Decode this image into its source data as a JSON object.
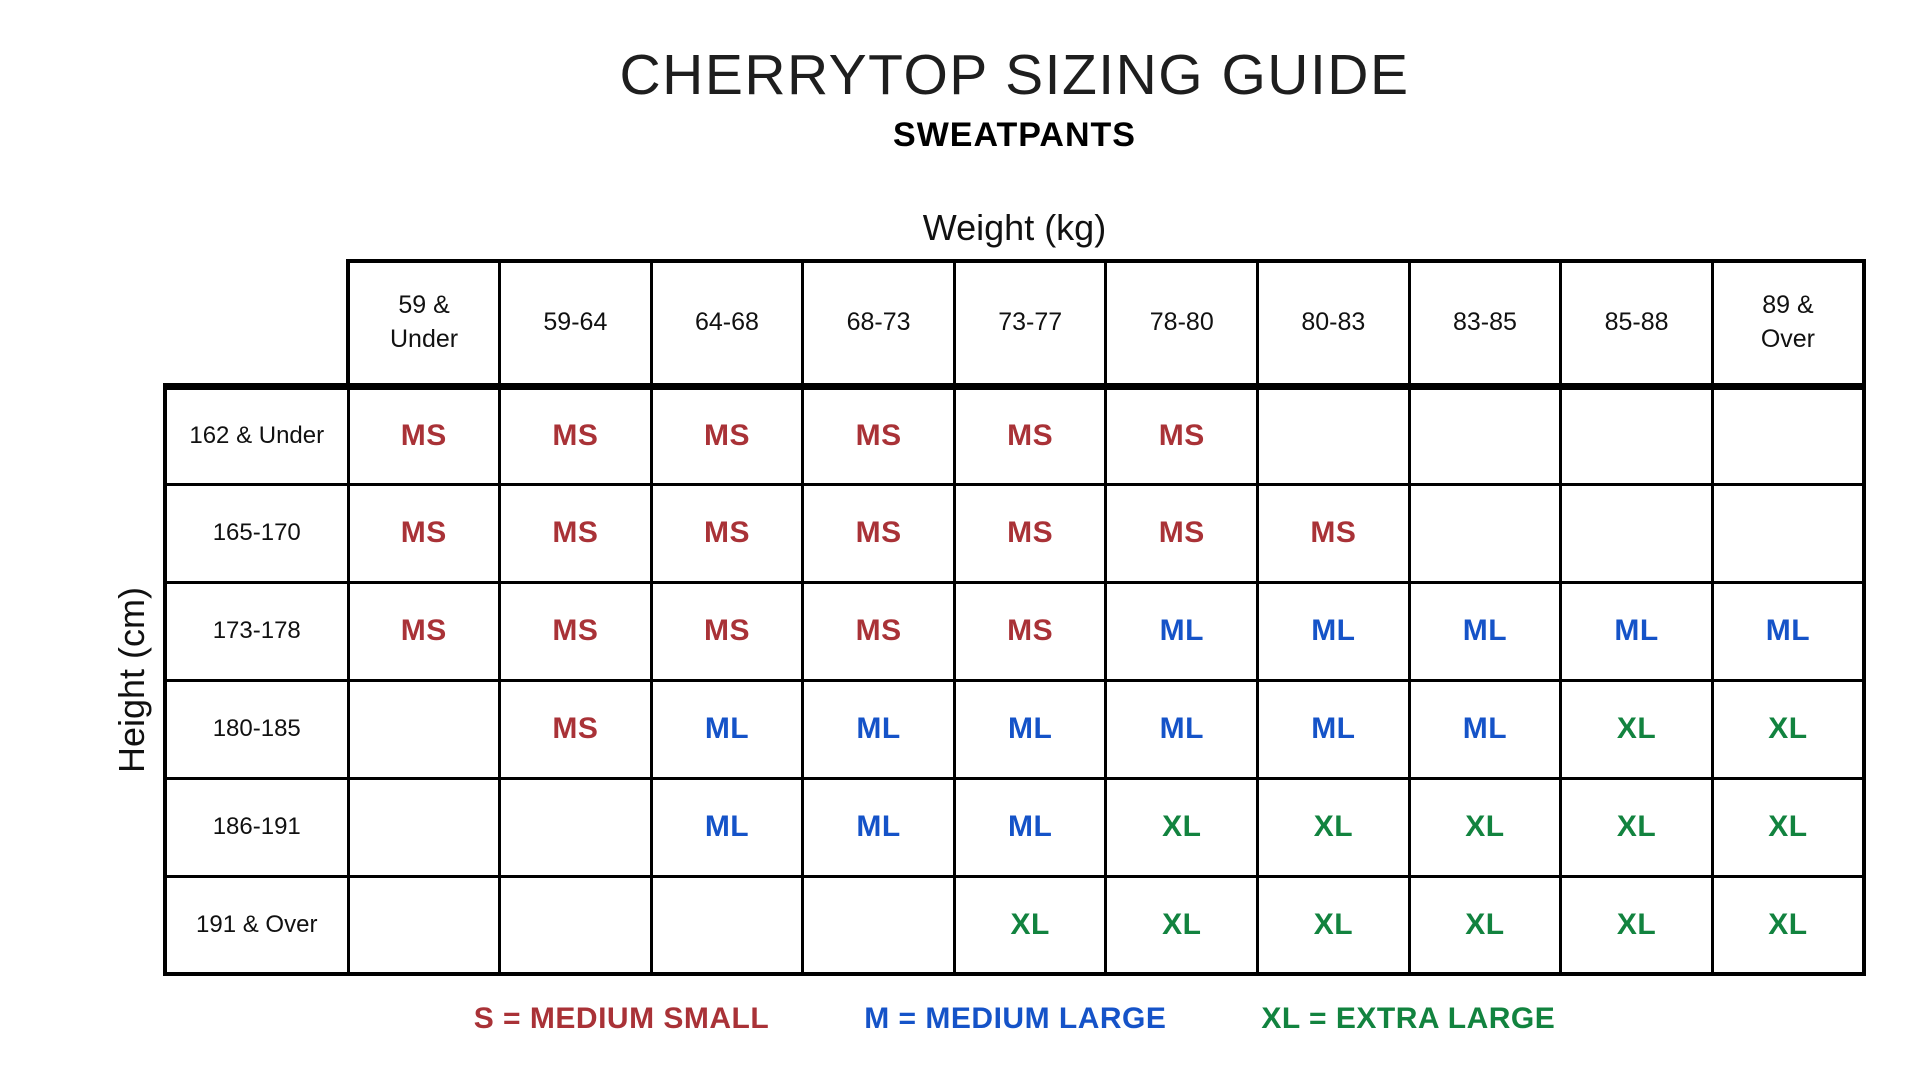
{
  "title": "CHERRYTOP SIZING GUIDE",
  "subtitle": "SWEATPANTS",
  "colors": {
    "ms": "#A93237",
    "ml": "#1553C8",
    "xl": "#12833F",
    "border": "#000000",
    "background": "#FFFFFF"
  },
  "chart_data": {
    "type": "table",
    "title": "CHERRYTOP SIZING GUIDE",
    "subtitle": "SWEATPANTS",
    "x_axis_label": "Weight (kg)",
    "y_axis_label": "Height (cm)",
    "columns": [
      "59 &\nUnder",
      "59-64",
      "64-68",
      "68-73",
      "73-77",
      "78-80",
      "80-83",
      "83-85",
      "85-88",
      "89 &\nOver"
    ],
    "rows": [
      {
        "label": "162 & Under",
        "values": [
          "MS",
          "MS",
          "MS",
          "MS",
          "MS",
          "MS",
          "",
          "",
          "",
          ""
        ]
      },
      {
        "label": "165-170",
        "values": [
          "MS",
          "MS",
          "MS",
          "MS",
          "MS",
          "MS",
          "MS",
          "",
          "",
          ""
        ]
      },
      {
        "label": "173-178",
        "values": [
          "MS",
          "MS",
          "MS",
          "MS",
          "MS",
          "ML",
          "ML",
          "ML",
          "ML",
          "ML"
        ]
      },
      {
        "label": "180-185",
        "values": [
          "",
          "MS",
          "ML",
          "ML",
          "ML",
          "ML",
          "ML",
          "ML",
          "XL",
          "XL"
        ]
      },
      {
        "label": "186-191",
        "values": [
          "",
          "",
          "ML",
          "ML",
          "ML",
          "XL",
          "XL",
          "XL",
          "XL",
          "XL"
        ]
      },
      {
        "label": "191 & Over",
        "values": [
          "",
          "",
          "",
          "",
          "XL",
          "XL",
          "XL",
          "XL",
          "XL",
          "XL"
        ]
      }
    ]
  },
  "legend": [
    {
      "label": "S = MEDIUM SMALL",
      "color": "#A93237"
    },
    {
      "label": "M = MEDIUM LARGE",
      "color": "#1553C8"
    },
    {
      "label": "XL = EXTRA LARGE",
      "color": "#12833F"
    }
  ]
}
